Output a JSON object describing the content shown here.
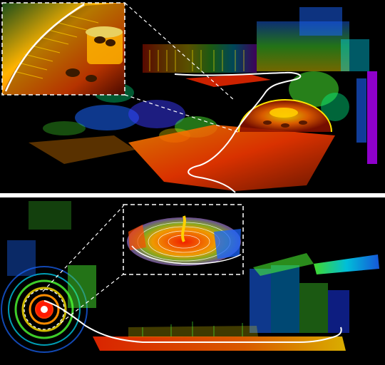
{
  "figure": {
    "panels": [
      {
        "id": "top",
        "subject": "lidar-point-cloud-garden-courtyard",
        "has_inset": true
      },
      {
        "id": "bottom",
        "subject": "lidar-point-cloud-street-loop",
        "has_inset": true
      }
    ],
    "colors": {
      "background": "#000000",
      "divider": "#ffffff",
      "trajectory": "#ffffff",
      "inset_frame": "#ffffff",
      "colormap": [
        "#ff1a00",
        "#ff8c00",
        "#ffe600",
        "#4dff33",
        "#00ffe0",
        "#1a66ff",
        "#b300ff"
      ]
    }
  }
}
